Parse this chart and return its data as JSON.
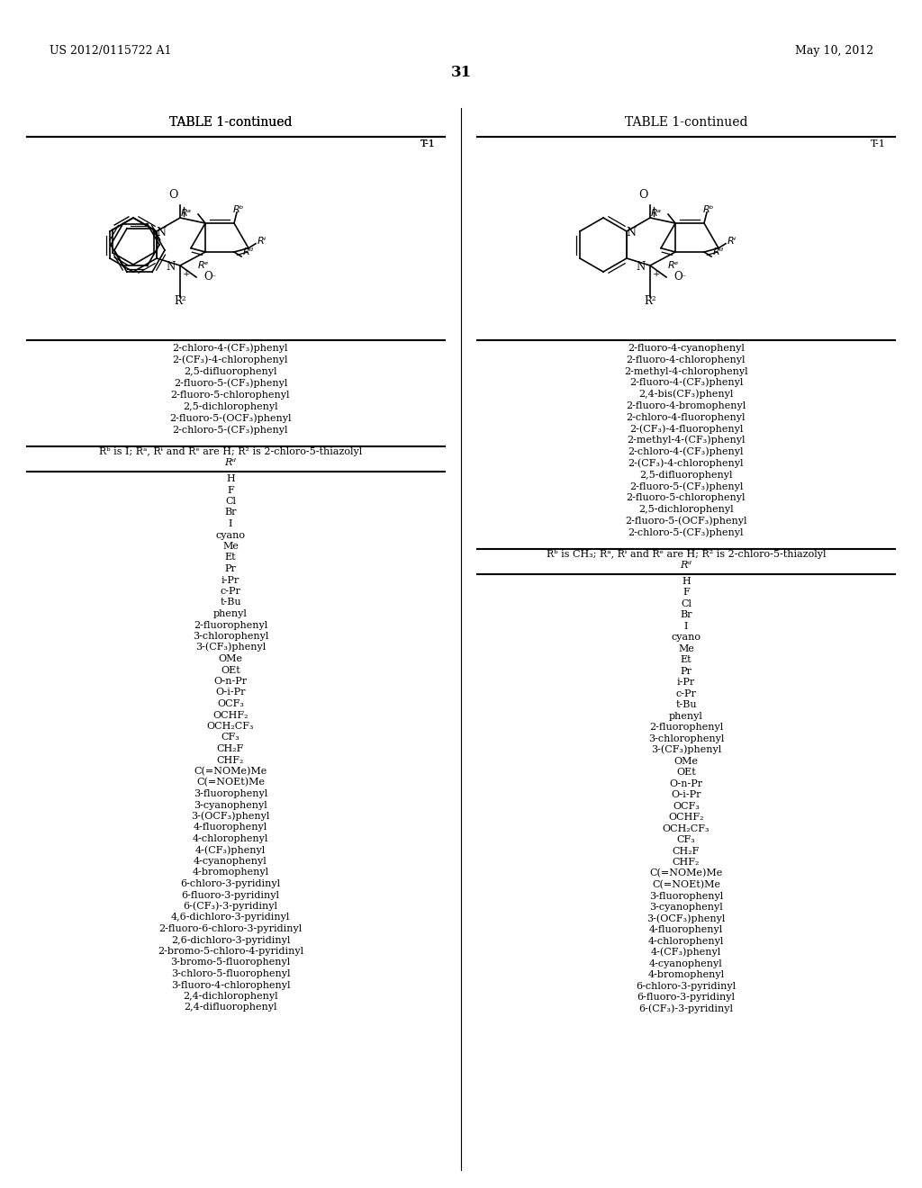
{
  "page_header_left": "US 2012/0115722 A1",
  "page_header_right": "May 10, 2012",
  "page_number": "31",
  "background_color": "#ffffff",
  "table_title": "TABLE 1-continued",
  "table_label": "T-1",
  "left_col_items_before_section": [
    "2-chloro-4-(CF₃)phenyl",
    "2-(CF₃)-4-chlorophenyl",
    "2,5-difluorophenyl",
    "2-fluoro-5-(CF₃)phenyl",
    "2-fluoro-5-chlorophenyl",
    "2,5-dichlorophenyl",
    "2-fluoro-5-(OCF₃)phenyl",
    "2-chloro-5-(CF₃)phenyl"
  ],
  "left_section_header": "Rᵇ is I; Rᵃ, Rᶤ and Rᵉ are H; R² is 2-chloro-5-thiazolyl",
  "left_section_sublabel": "Rᵈ",
  "left_col_items": [
    "H",
    "F",
    "Cl",
    "Br",
    "I",
    "cyano",
    "Me",
    "Et",
    "Pr",
    "i-Pr",
    "c-Pr",
    "t-Bu",
    "phenyl",
    "2-fluorophenyl",
    "3-chlorophenyl",
    "3-(CF₃)phenyl",
    "OMe",
    "OEt",
    "O-n-Pr",
    "O-i-Pr",
    "OCF₃",
    "OCHF₂",
    "OCH₂CF₃",
    "CF₃",
    "CH₂F",
    "CHF₂",
    "C(=NOMe)Me",
    "C(=NOEt)Me",
    "3-fluorophenyl",
    "3-cyanophenyl",
    "3-(OCF₃)phenyl",
    "4-fluorophenyl",
    "4-chlorophenyl",
    "4-(CF₃)phenyl",
    "4-cyanophenyl",
    "4-bromophenyl",
    "6-chloro-3-pyridinyl",
    "6-fluoro-3-pyridinyl",
    "6-(CF₃)-3-pyridinyl",
    "4,6-dichloro-3-pyridinyl",
    "2-fluoro-6-chloro-3-pyridinyl",
    "2,6-dichloro-3-pyridinyl",
    "2-bromo-5-chloro-4-pyridinyl",
    "3-bromo-5-fluorophenyl",
    "3-chloro-5-fluorophenyl",
    "3-fluoro-4-chlorophenyl",
    "2,4-dichlorophenyl",
    "2,4-difluorophenyl"
  ],
  "right_col_items_before_section": [
    "2-fluoro-4-cyanophenyl",
    "2-fluoro-4-chlorophenyl",
    "2-methyl-4-chlorophenyl",
    "2-fluoro-4-(CF₃)phenyl",
    "2,4-bis(CF₃)phenyl",
    "2-fluoro-4-bromophenyl",
    "2-chloro-4-fluorophenyl",
    "2-(CF₃)-4-fluorophenyl",
    "2-methyl-4-(CF₃)phenyl",
    "2-chloro-4-(CF₃)phenyl",
    "2-(CF₃)-4-chlorophenyl",
    "2,5-difluorophenyl",
    "2-fluoro-5-(CF₃)phenyl",
    "2-fluoro-5-chlorophenyl",
    "2,5-dichlorophenyl",
    "2-fluoro-5-(OCF₃)phenyl",
    "2-chloro-5-(CF₃)phenyl"
  ],
  "right_section_header": "Rᵇ is CH₃; Rᵃ, Rᶤ and Rᵉ are H; R² is 2-chloro-5-thiazolyl",
  "right_section_sublabel": "Rᵈ",
  "right_col_items": [
    "H",
    "F",
    "Cl",
    "Br",
    "I",
    "cyano",
    "Me",
    "Et",
    "Pr",
    "i-Pr",
    "c-Pr",
    "t-Bu",
    "phenyl",
    "2-fluorophenyl",
    "3-chlorophenyl",
    "3-(CF₃)phenyl",
    "OMe",
    "OEt",
    "O-n-Pr",
    "O-i-Pr",
    "OCF₃",
    "OCHF₂",
    "OCH₂CF₃",
    "CF₃",
    "CH₂F",
    "CHF₂",
    "C(=NOMe)Me",
    "C(=NOEt)Me",
    "3-fluorophenyl",
    "3-cyanophenyl",
    "3-(OCF₃)phenyl",
    "4-fluorophenyl",
    "4-chlorophenyl",
    "4-(CF₃)phenyl",
    "4-cyanophenyl",
    "4-bromophenyl",
    "6-chloro-3-pyridinyl",
    "6-fluoro-3-pyridinyl",
    "6-(CF₃)-3-pyridinyl"
  ]
}
